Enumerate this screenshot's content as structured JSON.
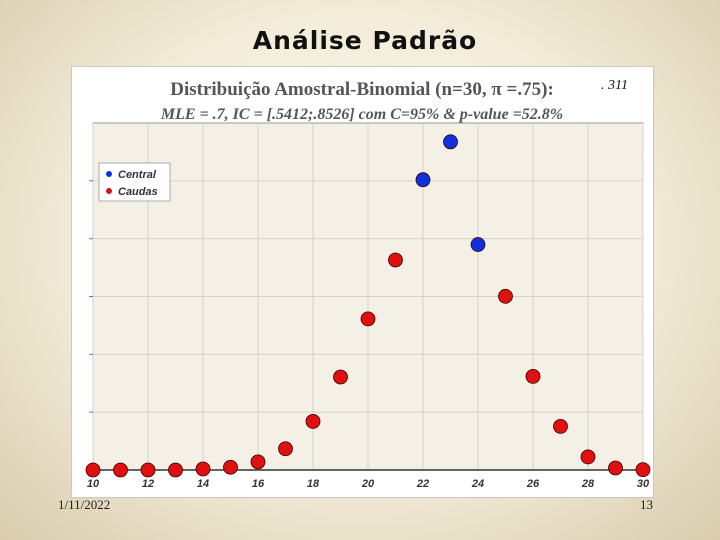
{
  "slide": {
    "title": "Análise Padrão",
    "date": "1/11/2022",
    "page_number": "13",
    "callout": ". 311"
  },
  "colors": {
    "central": "#1030e0",
    "caudas": "#e01010",
    "plot_bg": "#f4f0e6",
    "grid": "#d8d2c4"
  },
  "chart_data": {
    "type": "scatter",
    "title": "Distribuição Amostral-Binomial (n=30,  π =.75):",
    "subtitle": "MLE = .7, IC = [.5412;.8526] com C=95%  & p-value =52.8%",
    "xlabel": "",
    "ylabel": "",
    "xlim": [
      10,
      30
    ],
    "ylim": [
      0,
      0.175
    ],
    "x_ticks": [
      "10",
      "12",
      "14",
      "16",
      "18",
      "20",
      "22",
      "24",
      "26",
      "28",
      "30"
    ],
    "grid": true,
    "legend_position": "top-left",
    "series": [
      {
        "name": "Central",
        "color": "#1030e0",
        "points": [
          [
            22,
            0.1464
          ],
          [
            23,
            0.1655
          ],
          [
            24,
            0.1137
          ]
        ]
      },
      {
        "name": "Caudas",
        "color": "#e01010",
        "points": [
          [
            10,
            0.0
          ],
          [
            11,
            0.0
          ],
          [
            12,
            0.0
          ],
          [
            13,
            0.0
          ],
          [
            14,
            0.0005
          ],
          [
            15,
            0.0014
          ],
          [
            16,
            0.0041
          ],
          [
            17,
            0.0107
          ],
          [
            18,
            0.0245
          ],
          [
            19,
            0.0469
          ],
          [
            20,
            0.0762
          ],
          [
            21,
            0.1059
          ],
          [
            25,
            0.0876
          ],
          [
            26,
            0.0472
          ],
          [
            27,
            0.022
          ],
          [
            28,
            0.0066
          ],
          [
            29,
            0.001
          ],
          [
            30,
            0.0002
          ]
        ]
      }
    ]
  }
}
